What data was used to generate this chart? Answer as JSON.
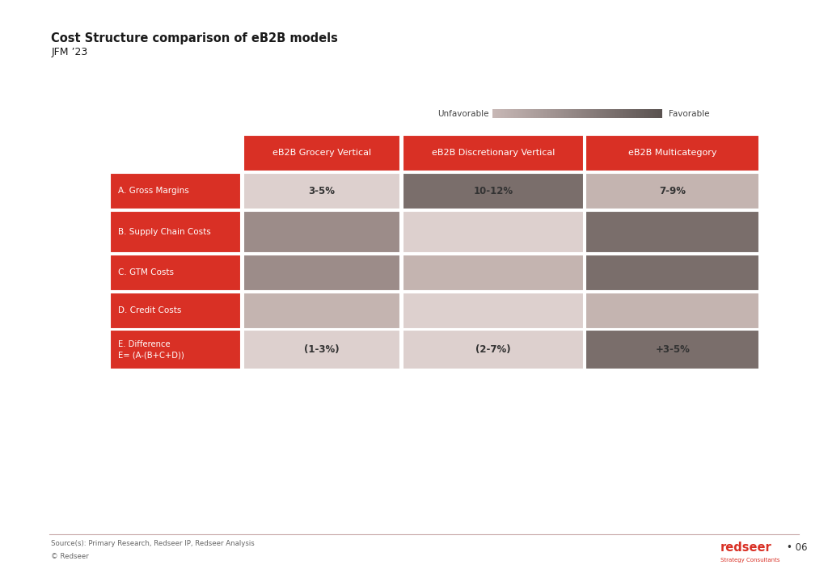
{
  "title": "Cost Structure comparison of eB2B models",
  "subtitle": "JFM ’23",
  "background_color": "#FFFFFF",
  "legend_label_left": "Unfavorable",
  "legend_label_right": "Favorable",
  "columns": [
    "eB2B Grocery Vertical",
    "eB2B Discretionary Vertical",
    "eB2B Multicategory"
  ],
  "rows": [
    {
      "label": "A. Gross Margins",
      "values": [
        "3-5%",
        "10-12%",
        "7-9%"
      ],
      "colors": [
        "#DDD0CE",
        "#7A6E6B",
        "#C4B4B0"
      ]
    },
    {
      "label": "B. Supply Chain Costs",
      "values": [
        "",
        "",
        ""
      ],
      "colors": [
        "#9C8C89",
        "#DDD0CE",
        "#7A6E6B"
      ]
    },
    {
      "label": "C. GTM Costs",
      "values": [
        "",
        "",
        ""
      ],
      "colors": [
        "#9C8C89",
        "#C4B4B0",
        "#7A6E6B"
      ]
    },
    {
      "label": "D. Credit Costs",
      "values": [
        "",
        "",
        ""
      ],
      "colors": [
        "#C4B4B0",
        "#DDD0CE",
        "#C4B4B0"
      ]
    }
  ],
  "diff_row": {
    "label": "E. Difference\nE= (A-(B+C+D))",
    "values": [
      "(1-3%)",
      "(2-7%)",
      "+3-5%"
    ],
    "colors": [
      "#DDD0CE",
      "#DDD0CE",
      "#7A6E6B"
    ]
  },
  "row_header_color": "#D93025",
  "col_header_color": "#D93025",
  "source_text": "Source(s): Primary Research, Redseer IP, Redseer Analysis",
  "copyright_text": "© Redseer",
  "page_number": "• 06",
  "footer_line_color": "#C8A8A8"
}
